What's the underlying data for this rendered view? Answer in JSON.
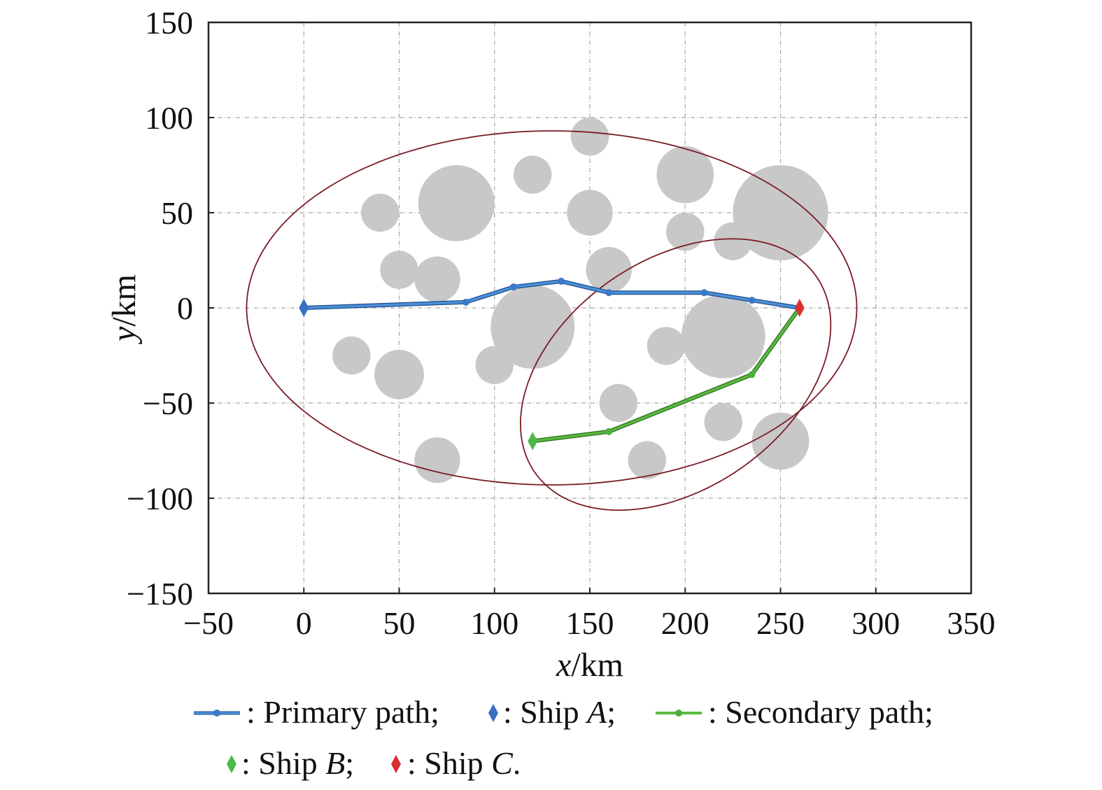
{
  "chart_data": {
    "type": "scatter",
    "xlabel_var": "x",
    "xlabel_unit": "/km",
    "ylabel_var": "y",
    "ylabel_unit": "/km",
    "xlim": [
      -50,
      350
    ],
    "ylim": [
      -150,
      150
    ],
    "xticks": [
      -50,
      0,
      50,
      100,
      150,
      200,
      250,
      300,
      350
    ],
    "yticks": [
      -150,
      -100,
      -50,
      0,
      50,
      100,
      150
    ],
    "xtick_labels": [
      "−50",
      "0",
      "50",
      "100",
      "150",
      "200",
      "250",
      "300",
      "350"
    ],
    "ytick_labels": [
      "−150",
      "−100",
      "−50",
      "0",
      "50",
      "100",
      "150"
    ],
    "grid": true,
    "legend_position": "bottom",
    "obstacles": [
      {
        "x": 40,
        "y": 50,
        "r": 10
      },
      {
        "x": 80,
        "y": 55,
        "r": 20
      },
      {
        "x": 120,
        "y": 70,
        "r": 10
      },
      {
        "x": 150,
        "y": 90,
        "r": 10
      },
      {
        "x": 150,
        "y": 50,
        "r": 12
      },
      {
        "x": 200,
        "y": 70,
        "r": 15
      },
      {
        "x": 200,
        "y": 40,
        "r": 10
      },
      {
        "x": 250,
        "y": 50,
        "r": 25
      },
      {
        "x": 225,
        "y": 35,
        "r": 10
      },
      {
        "x": 50,
        "y": 20,
        "r": 10
      },
      {
        "x": 70,
        "y": 15,
        "r": 12
      },
      {
        "x": 160,
        "y": 20,
        "r": 12
      },
      {
        "x": 120,
        "y": -10,
        "r": 22
      },
      {
        "x": 220,
        "y": -15,
        "r": 22
      },
      {
        "x": 25,
        "y": -25,
        "r": 10
      },
      {
        "x": 50,
        "y": -35,
        "r": 13
      },
      {
        "x": 100,
        "y": -30,
        "r": 10
      },
      {
        "x": 190,
        "y": -20,
        "r": 10
      },
      {
        "x": 165,
        "y": -50,
        "r": 10
      },
      {
        "x": 220,
        "y": -60,
        "r": 10
      },
      {
        "x": 250,
        "y": -70,
        "r": 15
      },
      {
        "x": 70,
        "y": -80,
        "r": 12
      },
      {
        "x": 180,
        "y": -80,
        "r": 10
      }
    ],
    "ellipses": [
      {
        "cx": 130,
        "cy": 0,
        "rx": 160,
        "ry": 93,
        "angle": 0
      },
      {
        "cx": 195,
        "cy": -35,
        "rx": 90,
        "ry": 60,
        "angle": 35
      }
    ],
    "series": [
      {
        "name": "Primary path",
        "color": "#4a90d9",
        "x": [
          0,
          85,
          110,
          135,
          160,
          210,
          235,
          260
        ],
        "y": [
          0,
          3,
          11,
          14,
          8,
          8,
          4,
          0
        ]
      },
      {
        "name": "Secondary path",
        "color": "#5cb840",
        "x": [
          120,
          160,
          235,
          260
        ],
        "y": [
          -70,
          -65,
          -35,
          0
        ]
      }
    ],
    "ships": [
      {
        "name": "Ship A",
        "x": 0,
        "y": 0,
        "color": "#3a6fc4"
      },
      {
        "name": "Ship B",
        "x": 120,
        "y": -70,
        "color": "#4cb848"
      },
      {
        "name": "Ship C",
        "x": 260,
        "y": 0,
        "color": "#d93030"
      }
    ],
    "colors": {
      "obstacle": "#c8c8c8",
      "ellipse": "#7a1c24",
      "primary": "#4a90d9",
      "primary_dark": "#1f4e8c",
      "secondary": "#5cb840",
      "secondary_dark": "#2a6e22"
    },
    "legend": {
      "primary_text": ": Primary path;",
      "shipA_prefix": ": Ship ",
      "shipA_letter": "A",
      "shipA_suffix": ";",
      "secondary_text": ": Secondary path;",
      "shipB_prefix": ": Ship ",
      "shipB_letter": "B",
      "shipB_suffix": ";",
      "shipC_prefix": ": Ship ",
      "shipC_letter": "C",
      "shipC_suffix": "."
    }
  }
}
